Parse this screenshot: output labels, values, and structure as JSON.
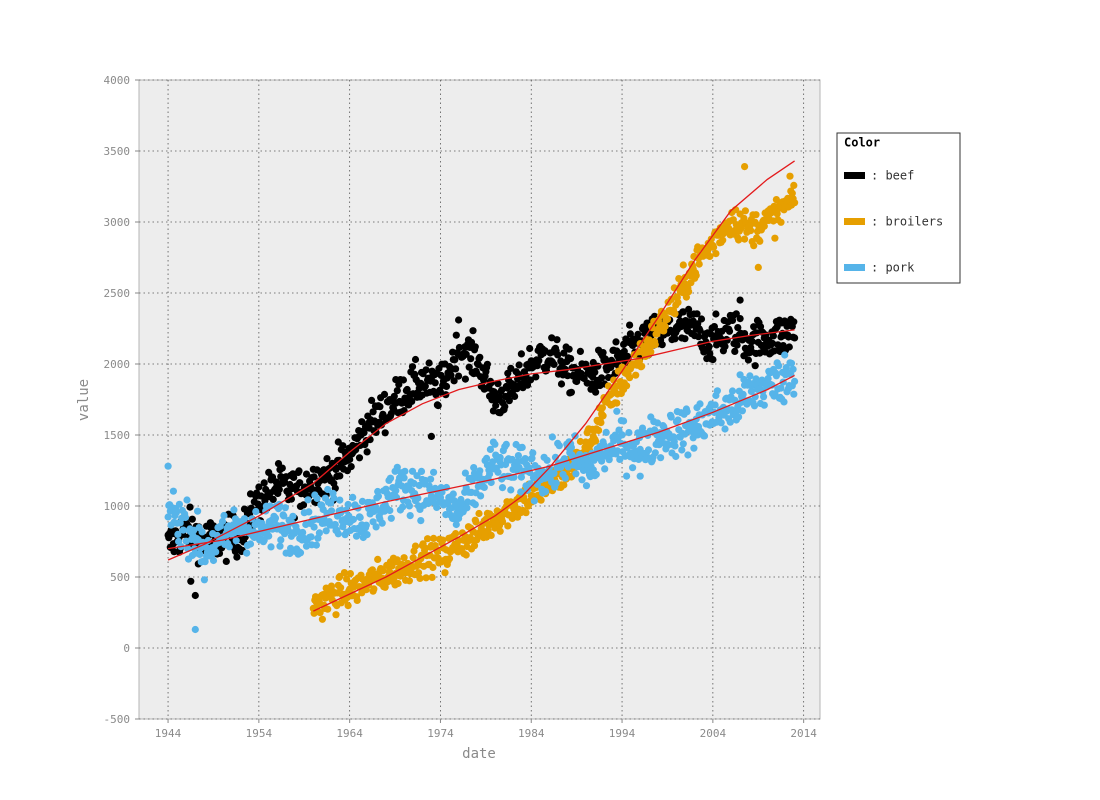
{
  "chart_data": {
    "type": "scatter",
    "title": "",
    "xlabel": "date",
    "ylabel": "value",
    "xlim": [
      1940.8,
      2015.8
    ],
    "ylim": [
      -500,
      4000
    ],
    "x_ticks": [
      1944,
      1954,
      1964,
      1974,
      1984,
      1994,
      2004,
      2014
    ],
    "y_ticks": [
      -500,
      0,
      500,
      1000,
      1500,
      2000,
      2500,
      3000,
      3500,
      4000
    ],
    "grid": true,
    "legend": {
      "title": "Color",
      "placement": "right"
    },
    "trend_color": "#e31a1c",
    "plot_background": "#ededed",
    "series": [
      {
        "name": "beef",
        "label": ": beef",
        "color": "#000000",
        "anchors": [
          [
            1944,
            720
          ],
          [
            1946,
            840
          ],
          [
            1948,
            760
          ],
          [
            1950,
            760
          ],
          [
            1952,
            800
          ],
          [
            1954,
            1030
          ],
          [
            1956,
            1150
          ],
          [
            1958,
            1100
          ],
          [
            1960,
            1180
          ],
          [
            1962,
            1220
          ],
          [
            1964,
            1350
          ],
          [
            1966,
            1560
          ],
          [
            1968,
            1680
          ],
          [
            1970,
            1800
          ],
          [
            1972,
            1880
          ],
          [
            1974,
            1820
          ],
          [
            1976,
            2100
          ],
          [
            1978,
            2030
          ],
          [
            1980,
            1750
          ],
          [
            1982,
            1820
          ],
          [
            1984,
            2000
          ],
          [
            1986,
            2080
          ],
          [
            1988,
            1950
          ],
          [
            1990,
            1920
          ],
          [
            1992,
            1950
          ],
          [
            1994,
            2050
          ],
          [
            1996,
            2150
          ],
          [
            1998,
            2200
          ],
          [
            2000,
            2250
          ],
          [
            2002,
            2250
          ],
          [
            2004,
            2150
          ],
          [
            2006,
            2250
          ],
          [
            2008,
            2150
          ],
          [
            2010,
            2180
          ],
          [
            2012,
            2200
          ],
          [
            2013,
            2250
          ]
        ],
        "trend": [
          [
            1944,
            620
          ],
          [
            1948,
            730
          ],
          [
            1954,
            930
          ],
          [
            1960,
            1160
          ],
          [
            1964,
            1380
          ],
          [
            1968,
            1580
          ],
          [
            1972,
            1720
          ],
          [
            1976,
            1820
          ],
          [
            1980,
            1880
          ],
          [
            1984,
            1930
          ],
          [
            1988,
            1960
          ],
          [
            1992,
            2000
          ],
          [
            1996,
            2040
          ],
          [
            2000,
            2100
          ],
          [
            2004,
            2160
          ],
          [
            2008,
            2200
          ],
          [
            2013,
            2240
          ]
        ],
        "noise": 75,
        "spikes": [
          [
            1946.5,
            470
          ],
          [
            1947,
            370
          ],
          [
            1976,
            2310
          ],
          [
            1973,
            1490
          ],
          [
            2007,
            2450
          ]
        ]
      },
      {
        "name": "broilers",
        "label": ": broilers",
        "color": "#e69f00",
        "anchors": [
          [
            1960,
            290
          ],
          [
            1962,
            360
          ],
          [
            1964,
            410
          ],
          [
            1966,
            460
          ],
          [
            1968,
            520
          ],
          [
            1970,
            570
          ],
          [
            1972,
            640
          ],
          [
            1974,
            650
          ],
          [
            1976,
            740
          ],
          [
            1978,
            800
          ],
          [
            1980,
            920
          ],
          [
            1982,
            990
          ],
          [
            1984,
            1080
          ],
          [
            1986,
            1150
          ],
          [
            1988,
            1250
          ],
          [
            1990,
            1400
          ],
          [
            1992,
            1680
          ],
          [
            1994,
            1880
          ],
          [
            1996,
            2050
          ],
          [
            1998,
            2250
          ],
          [
            2000,
            2450
          ],
          [
            2002,
            2700
          ],
          [
            2004,
            2850
          ],
          [
            2006,
            3020
          ],
          [
            2008,
            2950
          ],
          [
            2010,
            3000
          ],
          [
            2012,
            3100
          ],
          [
            2013,
            3200
          ]
        ],
        "trend": [
          [
            1960,
            260
          ],
          [
            1964,
            380
          ],
          [
            1968,
            500
          ],
          [
            1972,
            640
          ],
          [
            1976,
            780
          ],
          [
            1980,
            930
          ],
          [
            1983,
            1070
          ],
          [
            1986,
            1270
          ],
          [
            1990,
            1580
          ],
          [
            1994,
            1950
          ],
          [
            1998,
            2330
          ],
          [
            2002,
            2730
          ],
          [
            2006,
            3080
          ],
          [
            2010,
            3300
          ],
          [
            2013,
            3430
          ]
        ],
        "noise": 60,
        "spikes": [
          [
            2007.5,
            3390
          ],
          [
            1974.5,
            530
          ],
          [
            2009,
            2680
          ]
        ]
      },
      {
        "name": "pork",
        "label": ": pork",
        "color": "#56b4e9",
        "anchors": [
          [
            1944,
            980
          ],
          [
            1946,
            860
          ],
          [
            1948,
            700
          ],
          [
            1950,
            750
          ],
          [
            1952,
            880
          ],
          [
            1954,
            800
          ],
          [
            1956,
            880
          ],
          [
            1958,
            820
          ],
          [
            1960,
            900
          ],
          [
            1962,
            950
          ],
          [
            1964,
            950
          ],
          [
            1966,
            900
          ],
          [
            1968,
            1050
          ],
          [
            1970,
            1150
          ],
          [
            1972,
            1100
          ],
          [
            1974,
            1050
          ],
          [
            1976,
            950
          ],
          [
            1978,
            1150
          ],
          [
            1980,
            1300
          ],
          [
            1982,
            1250
          ],
          [
            1984,
            1250
          ],
          [
            1986,
            1230
          ],
          [
            1988,
            1350
          ],
          [
            1990,
            1250
          ],
          [
            1992,
            1380
          ],
          [
            1994,
            1450
          ],
          [
            1996,
            1400
          ],
          [
            1998,
            1500
          ],
          [
            2000,
            1520
          ],
          [
            2002,
            1550
          ],
          [
            2004,
            1650
          ],
          [
            2006,
            1680
          ],
          [
            2008,
            1800
          ],
          [
            2010,
            1850
          ],
          [
            2012,
            1900
          ],
          [
            2013,
            1950
          ]
        ],
        "trend": [
          [
            1944,
            700
          ],
          [
            1950,
            760
          ],
          [
            1956,
            850
          ],
          [
            1962,
            940
          ],
          [
            1968,
            1030
          ],
          [
            1974,
            1110
          ],
          [
            1980,
            1190
          ],
          [
            1986,
            1280
          ],
          [
            1992,
            1400
          ],
          [
            1998,
            1520
          ],
          [
            2004,
            1660
          ],
          [
            2010,
            1820
          ],
          [
            2013,
            1920
          ]
        ],
        "noise": 85,
        "spikes": [
          [
            1947,
            130
          ],
          [
            1944,
            1280
          ],
          [
            1948,
            480
          ],
          [
            1996,
            1210
          ]
        ]
      }
    ]
  }
}
